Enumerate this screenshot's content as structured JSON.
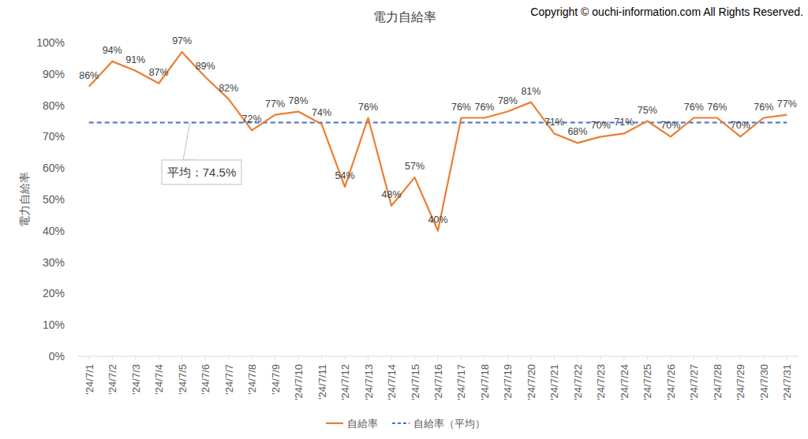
{
  "chart_data": {
    "type": "line",
    "title": "電力自給率",
    "subtitle": "Copyright © ouchi-information.com All Rights Reserved.",
    "y_label": "電力自給率",
    "categories": [
      "'24/7/1",
      "'24/7/2",
      "'24/7/3",
      "'24/7/4",
      "'24/7/5",
      "'24/7/6",
      "'24/7/7",
      "'24/7/8",
      "'24/7/9",
      "'24/7/10",
      "'24/7/11",
      "'24/7/12",
      "'24/7/13",
      "'24/7/14",
      "'24/7/15",
      "'24/7/16",
      "'24/7/17",
      "'24/7/18",
      "'24/7/19",
      "'24/7/20",
      "'24/7/21",
      "'24/7/22",
      "'24/7/23",
      "'24/7/24",
      "'24/7/25",
      "'24/7/26",
      "'24/7/27",
      "'24/7/28",
      "'24/7/29",
      "'24/7/30",
      "'24/7/31"
    ],
    "series": [
      {
        "name": "自給率",
        "color": "#ED7D31",
        "line_style": "solid",
        "data_labels": true,
        "values": [
          86,
          94,
          91,
          87,
          97,
          89,
          82,
          72,
          77,
          78,
          74,
          54,
          76,
          48,
          57,
          40,
          76,
          76,
          78,
          81,
          71,
          68,
          70,
          71,
          75,
          70,
          76,
          76,
          70,
          76,
          77
        ],
        "value_labels": [
          "86%",
          "94%",
          "91%",
          "87%",
          "97%",
          "89%",
          "82%",
          "72%",
          "77%",
          "78%",
          "74%",
          "54%",
          "76%",
          "48%",
          "57%",
          "40%",
          "76%",
          "76%",
          "78%",
          "81%",
          "71%",
          "68%",
          "70%",
          "71%",
          "75%",
          "70%",
          "76%",
          "76%",
          "70%",
          "76%",
          "77%"
        ]
      },
      {
        "name": "自給率（平均）",
        "color": "#4472C4",
        "line_style": "dashed",
        "data_labels": false,
        "values": [
          74.5,
          74.5,
          74.5,
          74.5,
          74.5,
          74.5,
          74.5,
          74.5,
          74.5,
          74.5,
          74.5,
          74.5,
          74.5,
          74.5,
          74.5,
          74.5,
          74.5,
          74.5,
          74.5,
          74.5,
          74.5,
          74.5,
          74.5,
          74.5,
          74.5,
          74.5,
          74.5,
          74.5,
          74.5,
          74.5,
          74.5
        ]
      }
    ],
    "annotations": [
      "平均：74.5%"
    ],
    "ylim": [
      0,
      100
    ],
    "yticks": [
      {
        "value": 0,
        "label": "0%"
      },
      {
        "value": 10,
        "label": "10%"
      },
      {
        "value": 20,
        "label": "20%"
      },
      {
        "value": 30,
        "label": "30%"
      },
      {
        "value": 40,
        "label": "40%"
      },
      {
        "value": 50,
        "label": "50%"
      },
      {
        "value": 60,
        "label": "60%"
      },
      {
        "value": 70,
        "label": "70%"
      },
      {
        "value": 80,
        "label": "80%"
      },
      {
        "value": 90,
        "label": "90%"
      },
      {
        "value": 100,
        "label": "100%"
      }
    ],
    "grid": false,
    "legend": "bottom"
  }
}
